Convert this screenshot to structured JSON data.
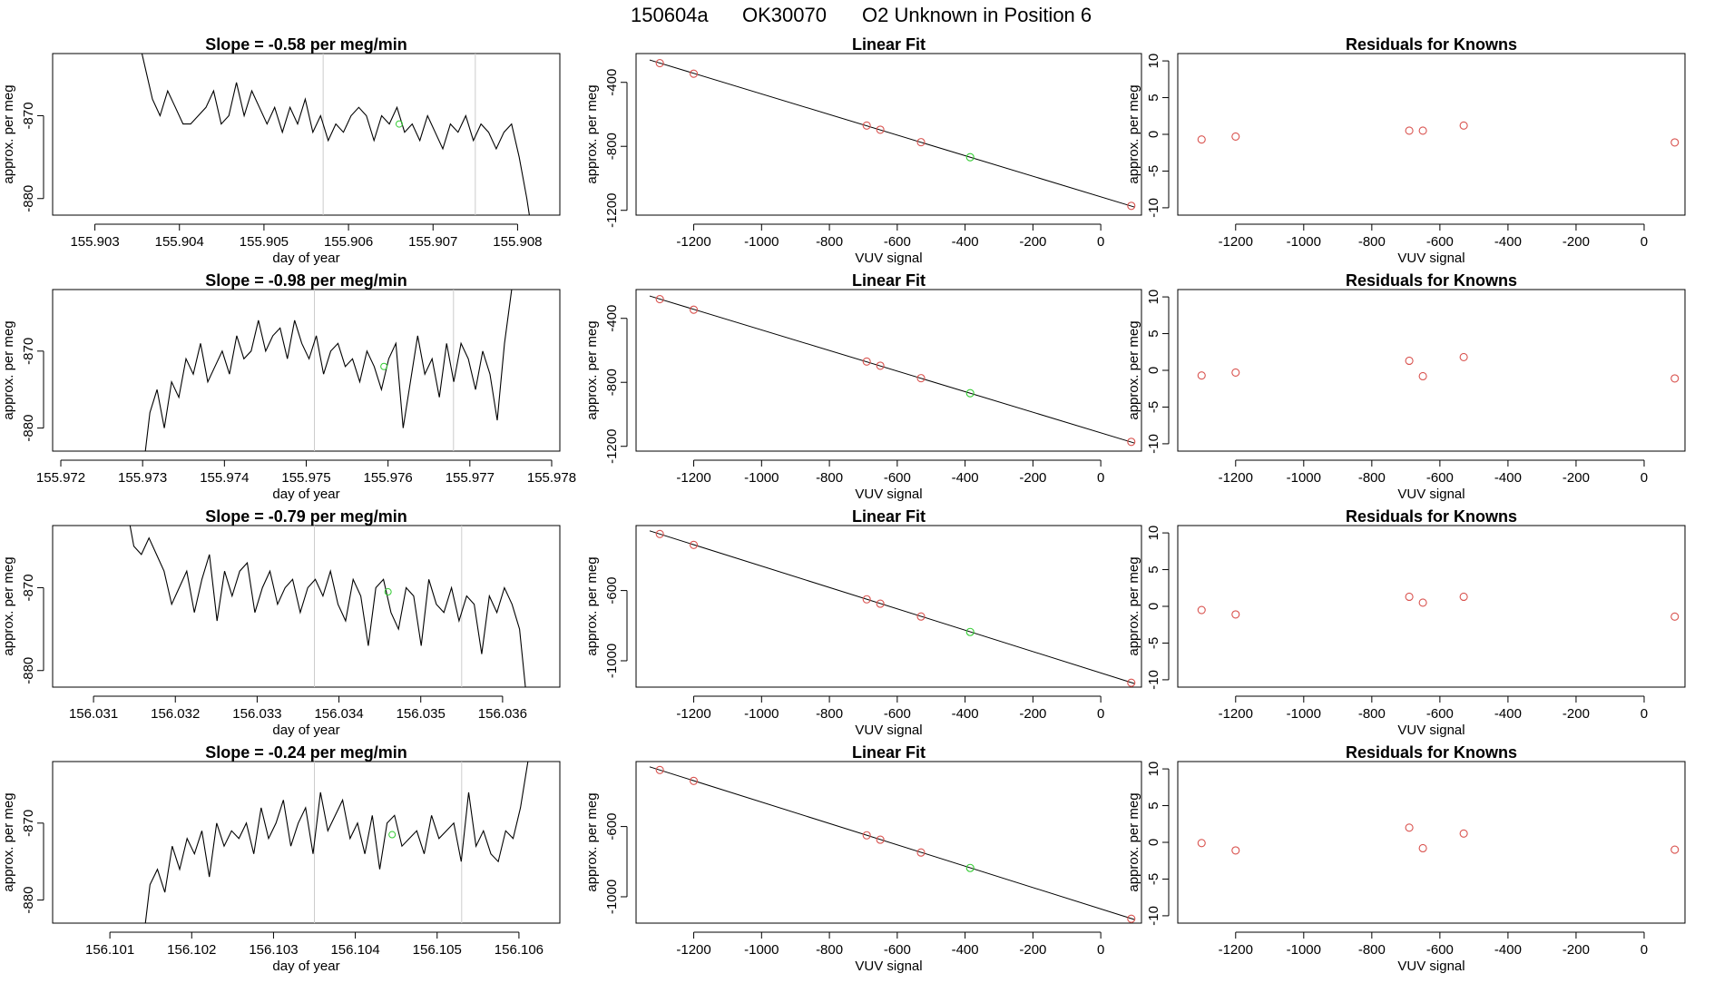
{
  "header": {
    "run_id": "150604a",
    "tank": "OK30070",
    "description": "O2 Unknown in Position  6"
  },
  "colors": {
    "known_point": "#d9534f",
    "unknown_point": "#33cc33",
    "line": "#000000",
    "marker_line": "#cccccc"
  },
  "chart_data": [
    {
      "type": "line",
      "row": 0,
      "panel": "timeseries",
      "title": "Slope =  -0.58  per meg/min",
      "xlabel": "day of year",
      "ylabel": "approx. per meg",
      "xlim": [
        155.9025,
        155.9085
      ],
      "ylim": [
        -882,
        -862.5
      ],
      "xticks": [
        155.903,
        155.904,
        155.905,
        155.906,
        155.907,
        155.908
      ],
      "xtick_labels": [
        "155.903",
        "155.904",
        "155.905",
        "155.906",
        "155.907",
        "155.908"
      ],
      "yticks": [
        -880,
        -870
      ],
      "ytick_labels": [
        "-880",
        "-870"
      ],
      "vlines": [
        155.9057,
        155.9075
      ],
      "x_start": 155.9035,
      "x_end": 155.9082,
      "series": [
        -860,
        -864,
        -868,
        -870,
        -867,
        -869,
        -871,
        -871,
        -870,
        -869,
        -867,
        -871,
        -870,
        -866,
        -870,
        -867,
        -869,
        -871,
        -869,
        -872,
        -869,
        -871,
        -868,
        -872,
        -870,
        -873,
        -871,
        -872,
        -870,
        -869,
        -870,
        -873,
        -870,
        -871,
        -869,
        -872,
        -871,
        -873,
        -870,
        -872,
        -874,
        -871,
        -872,
        -870,
        -873,
        -871,
        -872,
        -874,
        -872,
        -871,
        -875,
        -880,
        -886
      ],
      "unknown_point": [
        155.9066,
        -871
      ]
    },
    {
      "type": "scatter",
      "row": 0,
      "panel": "linear_fit",
      "title": "Linear Fit",
      "xlabel": "VUV signal",
      "ylabel": "approx. per meg",
      "xlim": [
        -1370,
        120
      ],
      "ylim": [
        -1230,
        -220
      ],
      "xticks": [
        -1200,
        -1000,
        -800,
        -600,
        -400,
        -200,
        0
      ],
      "xtick_labels": [
        "-1200",
        "-1000",
        "-800",
        "-600",
        "-400",
        "-200",
        "0"
      ],
      "yticks": [
        -1200,
        -800,
        -400
      ],
      "ytick_labels": [
        "-1200",
        "-800",
        "-400"
      ],
      "fit_line": [
        [
          -1330,
          -260
        ],
        [
          100,
          -1180
        ]
      ],
      "knowns": [
        [
          -1300,
          -280
        ],
        [
          -1200,
          -346
        ],
        [
          -690,
          -670
        ],
        [
          -650,
          -696
        ],
        [
          -530,
          -774
        ],
        [
          90,
          -1172
        ]
      ],
      "unknown": [
        [
          -385,
          -868
        ]
      ]
    },
    {
      "type": "scatter",
      "row": 0,
      "panel": "residuals",
      "title": "Residuals for Knowns",
      "xlabel": "VUV signal",
      "ylabel": "approx. per meg",
      "xlim": [
        -1370,
        120
      ],
      "ylim": [
        -11,
        11
      ],
      "xticks": [
        -1200,
        -1000,
        -800,
        -600,
        -400,
        -200,
        0
      ],
      "xtick_labels": [
        "-1200",
        "-1000",
        "-800",
        "-600",
        "-400",
        "-200",
        "0"
      ],
      "yticks": [
        -10,
        -5,
        0,
        5,
        10
      ],
      "ytick_labels": [
        "-10",
        "-5",
        "0",
        "5",
        "10"
      ],
      "knowns": [
        [
          -1300,
          -0.7
        ],
        [
          -1200,
          -0.3
        ],
        [
          -690,
          0.5
        ],
        [
          -650,
          0.5
        ],
        [
          -530,
          1.2
        ],
        [
          90,
          -1.1
        ]
      ]
    },
    {
      "type": "line",
      "row": 1,
      "panel": "timeseries",
      "title": "Slope =  -0.98  per meg/min",
      "xlabel": "day of year",
      "ylabel": "approx. per meg",
      "xlim": [
        155.9719,
        155.9781
      ],
      "ylim": [
        -883,
        -862
      ],
      "xticks": [
        155.972,
        155.973,
        155.974,
        155.975,
        155.976,
        155.977,
        155.978
      ],
      "xtick_labels": [
        "155.972",
        "155.973",
        "155.974",
        "155.975",
        "155.976",
        "155.977",
        "155.978"
      ],
      "yticks": [
        -880,
        -870
      ],
      "ytick_labels": [
        "-880",
        "-870"
      ],
      "vlines": [
        155.9751,
        155.9768
      ],
      "x_start": 155.973,
      "x_end": 155.9776,
      "series": [
        -886,
        -878,
        -875,
        -880,
        -874,
        -876,
        -871,
        -873,
        -869,
        -874,
        -872,
        -870,
        -873,
        -868,
        -871,
        -870,
        -866,
        -870,
        -868,
        -867,
        -871,
        -866,
        -869,
        -871,
        -868,
        -873,
        -870,
        -869,
        -872,
        -871,
        -874,
        -870,
        -872,
        -875,
        -871,
        -869,
        -880,
        -874,
        -868,
        -873,
        -871,
        -876,
        -869,
        -874,
        -869,
        -871,
        -875,
        -870,
        -873,
        -879,
        -869,
        -862,
        -858
      ],
      "unknown_point": [
        155.97595,
        -872
      ]
    },
    {
      "type": "scatter",
      "row": 1,
      "panel": "linear_fit",
      "title": "Linear Fit",
      "xlabel": "VUV signal",
      "ylabel": "approx. per meg",
      "xlim": [
        -1370,
        120
      ],
      "ylim": [
        -1230,
        -220
      ],
      "xticks": [
        -1200,
        -1000,
        -800,
        -600,
        -400,
        -200,
        0
      ],
      "xtick_labels": [
        "-1200",
        "-1000",
        "-800",
        "-600",
        "-400",
        "-200",
        "0"
      ],
      "yticks": [
        -1200,
        -800,
        -400
      ],
      "ytick_labels": [
        "-1200",
        "-800",
        "-400"
      ],
      "fit_line": [
        [
          -1330,
          -260
        ],
        [
          100,
          -1180
        ]
      ],
      "knowns": [
        [
          -1300,
          -280
        ],
        [
          -1200,
          -346
        ],
        [
          -690,
          -670
        ],
        [
          -650,
          -696
        ],
        [
          -530,
          -774
        ],
        [
          90,
          -1172
        ]
      ],
      "unknown": [
        [
          -385,
          -868
        ]
      ]
    },
    {
      "type": "scatter",
      "row": 1,
      "panel": "residuals",
      "title": "Residuals for Knowns",
      "xlabel": "VUV signal",
      "ylabel": "approx. per meg",
      "xlim": [
        -1370,
        120
      ],
      "ylim": [
        -11,
        11
      ],
      "xticks": [
        -1200,
        -1000,
        -800,
        -600,
        -400,
        -200,
        0
      ],
      "xtick_labels": [
        "-1200",
        "-1000",
        "-800",
        "-600",
        "-400",
        "-200",
        "0"
      ],
      "yticks": [
        -10,
        -5,
        0,
        5,
        10
      ],
      "ytick_labels": [
        "-10",
        "-5",
        "0",
        "5",
        "10"
      ],
      "knowns": [
        [
          -1300,
          -0.7
        ],
        [
          -1200,
          -0.3
        ],
        [
          -690,
          1.3
        ],
        [
          -650,
          -0.8
        ],
        [
          -530,
          1.8
        ],
        [
          90,
          -1.1
        ]
      ]
    },
    {
      "type": "line",
      "row": 2,
      "panel": "timeseries",
      "title": "Slope =  -0.79  per meg/min",
      "xlabel": "day of year",
      "ylabel": "approx. per meg",
      "xlim": [
        156.0305,
        156.0367
      ],
      "ylim": [
        -882,
        -862.5
      ],
      "xticks": [
        156.031,
        156.032,
        156.033,
        156.034,
        156.035,
        156.036
      ],
      "xtick_labels": [
        "156.031",
        "156.032",
        "156.033",
        "156.034",
        "156.035",
        "156.036"
      ],
      "yticks": [
        -880,
        -870
      ],
      "ytick_labels": [
        "-880",
        "-870"
      ],
      "vlines": [
        156.0337,
        156.0355
      ],
      "x_start": 156.0314,
      "x_end": 156.0363,
      "series": [
        -860,
        -865,
        -866,
        -864,
        -866,
        -868,
        -872,
        -870,
        -868,
        -873,
        -869,
        -866,
        -874,
        -868,
        -871,
        -868,
        -867,
        -873,
        -870,
        -868,
        -872,
        -870,
        -869,
        -873,
        -870,
        -869,
        -871,
        -868,
        -872,
        -874,
        -869,
        -871,
        -877,
        -870,
        -869,
        -873,
        -875,
        -870,
        -871,
        -877,
        -869,
        -872,
        -873,
        -870,
        -874,
        -871,
        -872,
        -878,
        -871,
        -873,
        -870,
        -872,
        -875,
        -884
      ],
      "unknown_point": [
        156.0346,
        -870.5
      ]
    },
    {
      "type": "scatter",
      "row": 2,
      "panel": "linear_fit",
      "title": "Linear Fit",
      "xlabel": "VUV signal",
      "ylabel": "approx. per meg",
      "xlim": [
        -1370,
        120
      ],
      "ylim": [
        -1150,
        -230
      ],
      "xticks": [
        -1200,
        -1000,
        -800,
        -600,
        -400,
        -200,
        0
      ],
      "xtick_labels": [
        "-1200",
        "-1000",
        "-800",
        "-600",
        "-400",
        "-200",
        "0"
      ],
      "yticks": [
        -1000,
        -600
      ],
      "ytick_labels": [
        "-1000",
        "-600"
      ],
      "fit_line": [
        [
          -1330,
          -260
        ],
        [
          100,
          -1130
        ]
      ],
      "knowns": [
        [
          -1300,
          -278
        ],
        [
          -1200,
          -340
        ],
        [
          -690,
          -650
        ],
        [
          -650,
          -675
        ],
        [
          -530,
          -748
        ],
        [
          90,
          -1125
        ]
      ],
      "unknown": [
        [
          -385,
          -836
        ]
      ]
    },
    {
      "type": "scatter",
      "row": 2,
      "panel": "residuals",
      "title": "Residuals for Knowns",
      "xlabel": "VUV signal",
      "ylabel": "approx. per meg",
      "xlim": [
        -1370,
        120
      ],
      "ylim": [
        -11,
        11
      ],
      "xticks": [
        -1200,
        -1000,
        -800,
        -600,
        -400,
        -200,
        0
      ],
      "xtick_labels": [
        "-1200",
        "-1000",
        "-800",
        "-600",
        "-400",
        "-200",
        "0"
      ],
      "yticks": [
        -10,
        -5,
        0,
        5,
        10
      ],
      "ytick_labels": [
        "-10",
        "-5",
        "0",
        "5",
        "10"
      ],
      "knowns": [
        [
          -1300,
          -0.5
        ],
        [
          -1200,
          -1.1
        ],
        [
          -690,
          1.3
        ],
        [
          -650,
          0.5
        ],
        [
          -530,
          1.3
        ],
        [
          90,
          -1.4
        ]
      ]
    },
    {
      "type": "line",
      "row": 3,
      "panel": "timeseries",
      "title": "Slope =  -0.24  per meg/min",
      "xlabel": "day of year",
      "ylabel": "approx. per meg",
      "xlim": [
        156.1003,
        156.1065
      ],
      "ylim": [
        -883,
        -862
      ],
      "xticks": [
        156.101,
        156.102,
        156.103,
        156.104,
        156.105,
        156.106
      ],
      "xtick_labels": [
        "156.101",
        "156.102",
        "156.103",
        "156.104",
        "156.105",
        "156.106"
      ],
      "yticks": [
        -880,
        -870
      ],
      "ytick_labels": [
        "-880",
        "-870"
      ],
      "vlines": [
        156.1035,
        156.1053
      ],
      "x_start": 156.1014,
      "x_end": 156.1062,
      "series": [
        -886,
        -878,
        -876,
        -879,
        -873,
        -876,
        -872,
        -874,
        -871,
        -877,
        -870,
        -873,
        -871,
        -872,
        -870,
        -874,
        -868,
        -872,
        -870,
        -867,
        -873,
        -870,
        -868,
        -874,
        -866,
        -871,
        -869,
        -867,
        -872,
        -870,
        -874,
        -869,
        -876,
        -870,
        -869,
        -873,
        -872,
        -871,
        -874,
        -869,
        -872,
        -871,
        -870,
        -875,
        -866,
        -873,
        -871,
        -874,
        -875,
        -871,
        -872,
        -868,
        -862,
        -858
      ],
      "unknown_point": [
        156.10445,
        -871.5
      ]
    },
    {
      "type": "scatter",
      "row": 3,
      "panel": "linear_fit",
      "title": "Linear Fit",
      "xlabel": "VUV signal",
      "ylabel": "approx. per meg",
      "xlim": [
        -1370,
        120
      ],
      "ylim": [
        -1150,
        -230
      ],
      "xticks": [
        -1200,
        -1000,
        -800,
        -600,
        -400,
        -200,
        0
      ],
      "xtick_labels": [
        "-1200",
        "-1000",
        "-800",
        "-600",
        "-400",
        "-200",
        "0"
      ],
      "yticks": [
        -1000,
        -600
      ],
      "ytick_labels": [
        "-1000",
        "-600"
      ],
      "fit_line": [
        [
          -1330,
          -260
        ],
        [
          100,
          -1130
        ]
      ],
      "knowns": [
        [
          -1300,
          -278
        ],
        [
          -1200,
          -340
        ],
        [
          -690,
          -650
        ],
        [
          -650,
          -675
        ],
        [
          -530,
          -748
        ],
        [
          90,
          -1125
        ]
      ],
      "unknown": [
        [
          -385,
          -836
        ]
      ]
    },
    {
      "type": "scatter",
      "row": 3,
      "panel": "residuals",
      "title": "Residuals for Knowns",
      "xlabel": "VUV signal",
      "ylabel": "approx. per meg",
      "xlim": [
        -1370,
        120
      ],
      "ylim": [
        -11,
        11
      ],
      "xticks": [
        -1200,
        -1000,
        -800,
        -600,
        -400,
        -200,
        0
      ],
      "xtick_labels": [
        "-1200",
        "-1000",
        "-800",
        "-600",
        "-400",
        "-200",
        "0"
      ],
      "yticks": [
        -10,
        -5,
        0,
        5,
        10
      ],
      "ytick_labels": [
        "-10",
        "-5",
        "0",
        "5",
        "10"
      ],
      "knowns": [
        [
          -1300,
          -0.1
        ],
        [
          -1200,
          -1.1
        ],
        [
          -690,
          2.0
        ],
        [
          -650,
          -0.8
        ],
        [
          -530,
          1.2
        ],
        [
          90,
          -1.0
        ]
      ]
    }
  ]
}
